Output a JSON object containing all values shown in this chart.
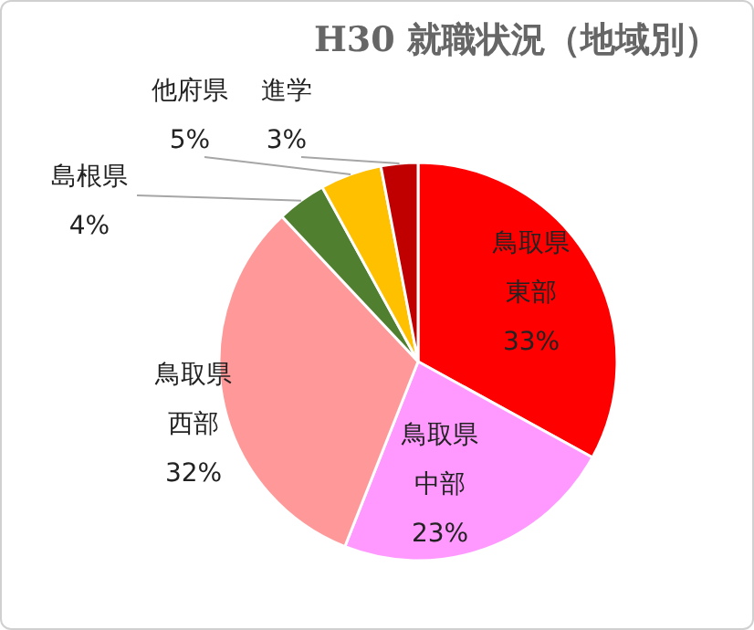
{
  "chart_data": {
    "type": "pie",
    "title": "H30 就職状況（地域別）",
    "categories": [
      "鳥取県東部",
      "鳥取県中部",
      "鳥取県西部",
      "島根県",
      "他府県",
      "進学"
    ],
    "values": [
      33,
      23,
      32,
      4,
      5,
      3
    ],
    "value_labels": [
      "33%",
      "23%",
      "32%",
      "4%",
      "5%",
      "3%"
    ],
    "colors": [
      "#ff0000",
      "#ff99ff",
      "#ff9999",
      "#4f7f2f",
      "#ffc000",
      "#c00000"
    ]
  }
}
